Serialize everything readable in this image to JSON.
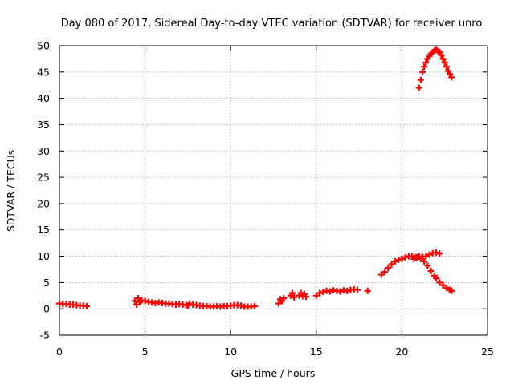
{
  "chart_data": {
    "type": "scatter",
    "title": "Day 080 of 2017, Sidereal Day-to-day VTEC variation (SDTVAR) for receiver unro",
    "xlabel": "GPS time / hours",
    "ylabel": "SDTVAR / TECUs",
    "xlim": [
      0,
      25
    ],
    "ylim": [
      -5,
      50
    ],
    "xticks": [
      "0",
      "5",
      "10",
      "15",
      "20",
      "25"
    ],
    "yticks": [
      "-5",
      "0",
      "5",
      "10",
      "15",
      "20",
      "25",
      "30",
      "35",
      "40",
      "45",
      "50"
    ],
    "grid": true,
    "marker": "plus",
    "color": "#ff0000",
    "series": [
      {
        "x": [
          0.0,
          0.2,
          0.4,
          0.6,
          0.8,
          1.0,
          1.2,
          1.4,
          1.6,
          4.4,
          4.5,
          4.6,
          4.7,
          4.8,
          5.0,
          5.2,
          5.4,
          5.6,
          5.8,
          6.0,
          6.2,
          6.4,
          6.6,
          6.8,
          7.0,
          7.2,
          7.4,
          7.5,
          7.6,
          7.8,
          8.0,
          8.2,
          8.4,
          8.6,
          8.8,
          9.0,
          9.2,
          9.4,
          9.6,
          9.8,
          10.0,
          10.2,
          10.4,
          10.6,
          10.8,
          11.0,
          11.2,
          11.4,
          12.8,
          12.9,
          13.0,
          13.1,
          13.5,
          13.6,
          13.7,
          14.0,
          14.1,
          14.2,
          14.3,
          14.4,
          15.0,
          15.2,
          15.4,
          15.6,
          15.8,
          16.0,
          16.2,
          16.4,
          16.6,
          16.8,
          17.0,
          17.2,
          17.4,
          18.0,
          18.8,
          19.0,
          19.2,
          19.4,
          19.6,
          19.8,
          20.0,
          20.2,
          20.4,
          20.6,
          20.8,
          21.0,
          21.2,
          21.4,
          21.6,
          21.8,
          22.0,
          22.2,
          20.7,
          20.9,
          21.1,
          21.3,
          21.5,
          21.7,
          21.9,
          22.0,
          22.2,
          22.4,
          22.6,
          22.8,
          22.9,
          21.0,
          21.1,
          21.2,
          21.3,
          21.4,
          21.5,
          21.6,
          21.7,
          21.8,
          21.9,
          22.0,
          22.1,
          22.2,
          22.3,
          22.4,
          22.5,
          22.6,
          22.7,
          22.8,
          22.9
        ],
        "y": [
          1.0,
          0.9,
          0.9,
          0.8,
          0.8,
          0.7,
          0.6,
          0.6,
          0.5,
          1.5,
          0.8,
          2.0,
          1.3,
          1.6,
          1.5,
          1.3,
          1.2,
          1.1,
          1.2,
          1.1,
          1.0,
          1.0,
          0.9,
          0.8,
          0.9,
          0.8,
          0.7,
          0.6,
          1.0,
          0.8,
          0.7,
          0.6,
          0.5,
          0.5,
          0.4,
          0.4,
          0.5,
          0.4,
          0.5,
          0.5,
          0.6,
          0.7,
          0.7,
          0.6,
          0.4,
          0.4,
          0.4,
          0.5,
          1.0,
          1.8,
          1.5,
          2.0,
          2.5,
          3.0,
          2.2,
          2.5,
          3.0,
          2.4,
          2.8,
          2.3,
          2.5,
          3.0,
          3.2,
          3.4,
          3.3,
          3.5,
          3.4,
          3.3,
          3.5,
          3.4,
          3.6,
          3.7,
          3.6,
          3.4,
          6.5,
          7.0,
          7.8,
          8.5,
          9.0,
          9.3,
          9.5,
          9.8,
          10.0,
          10.0,
          9.8,
          10.0,
          9.9,
          10.0,
          10.3,
          10.6,
          10.7,
          10.5,
          9.5,
          9.8,
          9.5,
          9.0,
          8.2,
          7.2,
          6.3,
          5.8,
          5.0,
          4.5,
          4.0,
          3.6,
          3.4,
          42.0,
          43.5,
          45.0,
          46.0,
          46.8,
          47.5,
          48.0,
          48.5,
          48.8,
          49.0,
          49.2,
          49.0,
          48.8,
          48.2,
          47.5,
          46.8,
          46.0,
          45.2,
          44.6,
          44.0
        ]
      }
    ]
  }
}
